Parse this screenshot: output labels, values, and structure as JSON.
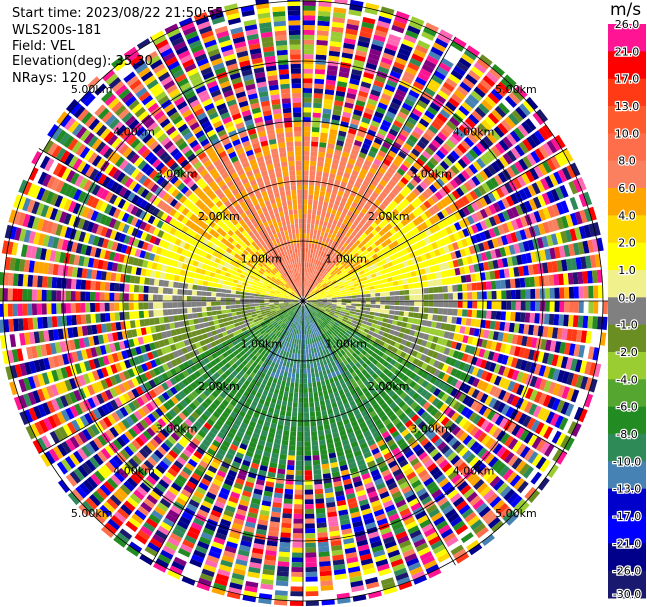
{
  "header": {
    "start_time": "Start time: 2023/08/22 21:50:55",
    "instrument": "WLS200s-181",
    "field": "Field: VEL",
    "elevation": "Elevation(deg): 35.30",
    "nrays": "NRays: 120"
  },
  "colorbar": {
    "unit": "m/s",
    "levels": [
      {
        "label": "26.0",
        "color": "#ff1493"
      },
      {
        "label": "21.0",
        "color": "#ff0000"
      },
      {
        "label": "17.0",
        "color": "#ff3a14"
      },
      {
        "label": "13.0",
        "color": "#ff5a2d"
      },
      {
        "label": "10.0",
        "color": "#ff6e4a"
      },
      {
        "label": "8.0",
        "color": "#fa8060"
      },
      {
        "label": "6.0",
        "color": "#ffa500"
      },
      {
        "label": "4.0",
        "color": "#ffd700"
      },
      {
        "label": "2.0",
        "color": "#ffff00"
      },
      {
        "label": "1.0",
        "color": "#f0f08c"
      },
      {
        "label": "0.0",
        "color": "#808080"
      },
      {
        "label": "-1.0",
        "color": "#6b8e23"
      },
      {
        "label": "-2.0",
        "color": "#9acd32"
      },
      {
        "label": "-4.0",
        "color": "#55a630"
      },
      {
        "label": "-6.0",
        "color": "#228b22"
      },
      {
        "label": "-8.0",
        "color": "#2e8b57"
      },
      {
        "label": "-10.0",
        "color": "#4682b4"
      },
      {
        "label": "-13.0",
        "color": "#0000cd"
      },
      {
        "label": "-17.0",
        "color": "#0000ff"
      },
      {
        "label": "-21.0",
        "color": "#00008b"
      },
      {
        "label": "-26.0",
        "color": "#191970"
      }
    ],
    "bottom_label": "-30.0"
  },
  "range_rings": [
    "1.00km",
    "2.00km",
    "3.00km",
    "4.00km",
    "5.00km"
  ],
  "noise_colors": [
    "#ff1493",
    "#ff0000",
    "#0000cd",
    "#00008b",
    "#228b22",
    "#ffa500",
    "#ffff00",
    "#ff69b4",
    "#9acd32",
    "#800080",
    "#4682b4",
    "#ff6e4a",
    "#000080",
    "#ffd700",
    "#2e8b57",
    "#ff3a14",
    "#6b8e23",
    "#0000ff",
    "#fa8060",
    "#191970"
  ]
}
